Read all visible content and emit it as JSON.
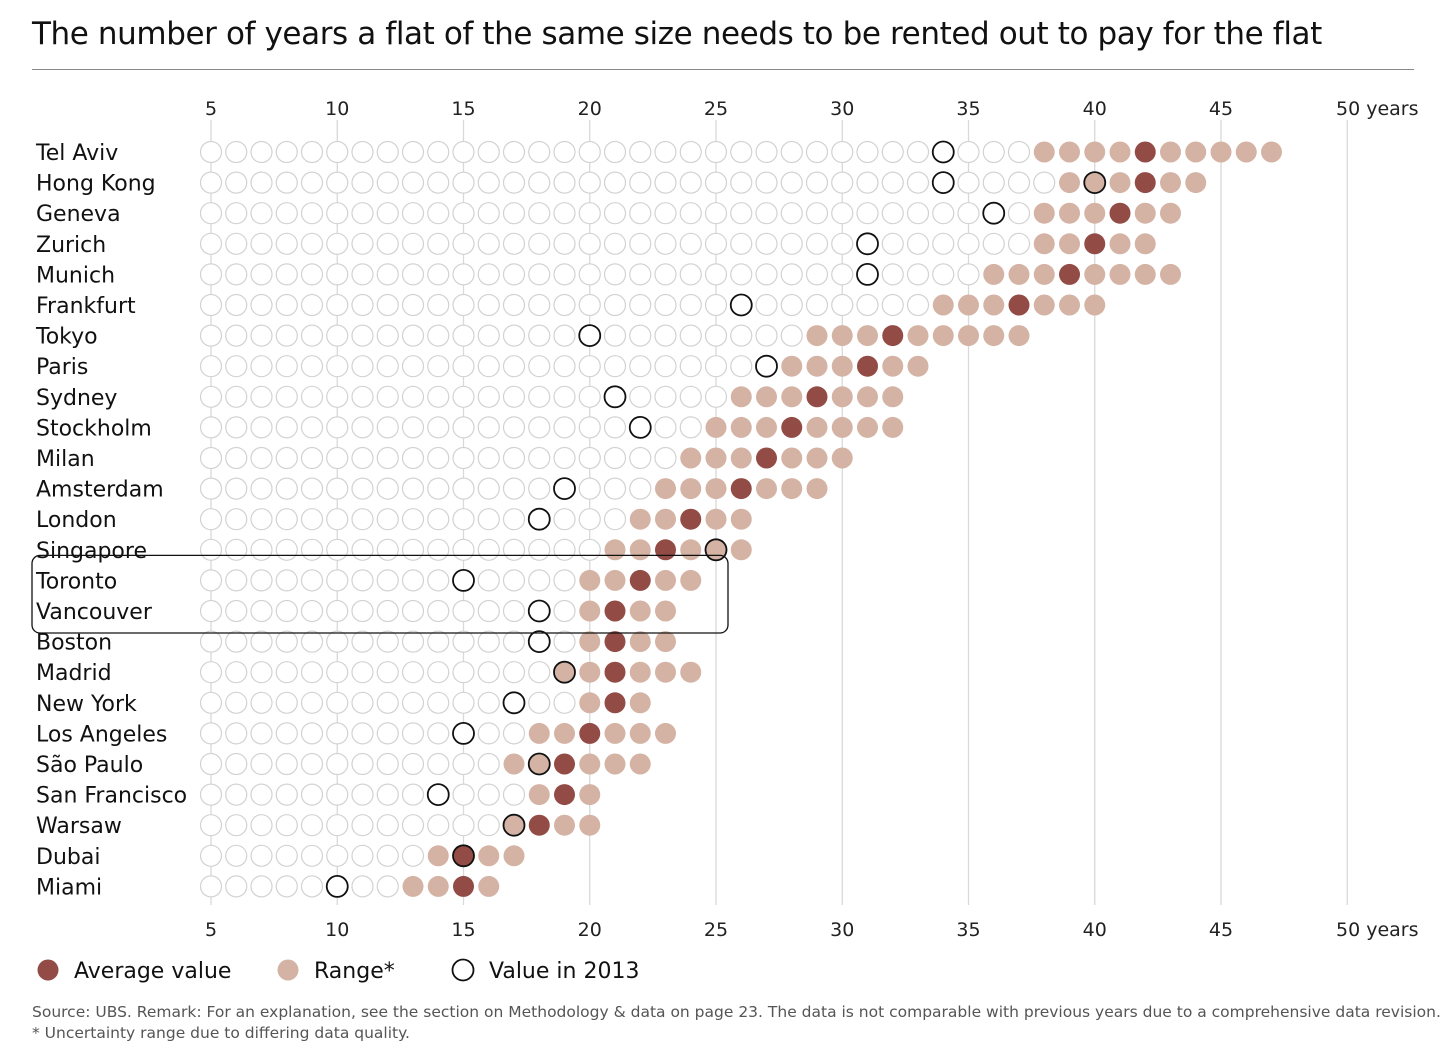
{
  "title": "The number of years a flat of the same size needs to be rented out to pay for the flat",
  "source": "Source: UBS. Remark: For an explanation, see the section on Methodology & data on page 23. The data is not comparable with previous years due to a comprehensive data revision.",
  "footnote": "* Uncertainty range due to differing data quality.",
  "colors": {
    "average": "#924b45",
    "range": "#d4b3a4",
    "empty": "#d2d2d2",
    "value2013": "#111111",
    "grid": "#d9d9d9"
  },
  "chart_data": {
    "type": "scatter",
    "title": "The number of years a flat of the same size needs to be rented out to pay for the flat",
    "xlabel": "years",
    "xlim": [
      5,
      50
    ],
    "xticks": [
      "5",
      "10",
      "15",
      "20",
      "25",
      "30",
      "35",
      "40",
      "45",
      "50 years"
    ],
    "xtick_values": [
      5,
      10,
      15,
      20,
      25,
      30,
      35,
      40,
      45,
      50
    ],
    "legend": [
      "Average value",
      "Range*",
      "Value in 2013"
    ],
    "legend_placement": "bottom-left",
    "highlighted": [
      "Toronto",
      "Vancouver"
    ],
    "cities": [
      {
        "name": "Tel Aviv",
        "range": [
          38,
          47
        ],
        "average": 42,
        "value2013": [
          34
        ]
      },
      {
        "name": "Hong Kong",
        "range": [
          39,
          44
        ],
        "average": 42,
        "value2013": [
          34,
          40
        ]
      },
      {
        "name": "Geneva",
        "range": [
          38,
          43
        ],
        "average": 41,
        "value2013": [
          36
        ]
      },
      {
        "name": "Zurich",
        "range": [
          38,
          42
        ],
        "average": 40,
        "value2013": [
          31
        ]
      },
      {
        "name": "Munich",
        "range": [
          36,
          43
        ],
        "average": 39,
        "value2013": [
          31
        ]
      },
      {
        "name": "Frankfurt",
        "range": [
          34,
          40
        ],
        "average": 37,
        "value2013": [
          26
        ]
      },
      {
        "name": "Tokyo",
        "range": [
          29,
          37
        ],
        "average": 32,
        "value2013": [
          20
        ]
      },
      {
        "name": "Paris",
        "range": [
          28,
          33
        ],
        "average": 31,
        "value2013": [
          27
        ]
      },
      {
        "name": "Sydney",
        "range": [
          26,
          32
        ],
        "average": 29,
        "value2013": [
          21
        ]
      },
      {
        "name": "Stockholm",
        "range": [
          25,
          32
        ],
        "average": 28,
        "value2013": [
          22
        ]
      },
      {
        "name": "Milan",
        "range": [
          24,
          30
        ],
        "average": 27,
        "value2013": []
      },
      {
        "name": "Amsterdam",
        "range": [
          23,
          29
        ],
        "average": 26,
        "value2013": [
          19
        ]
      },
      {
        "name": "London",
        "range": [
          22,
          26
        ],
        "average": 24,
        "value2013": [
          18
        ]
      },
      {
        "name": "Singapore",
        "range": [
          21,
          26
        ],
        "average": 23,
        "value2013": [
          25
        ]
      },
      {
        "name": "Toronto",
        "range": [
          20,
          24
        ],
        "average": 22,
        "value2013": [
          15
        ]
      },
      {
        "name": "Vancouver",
        "range": [
          20,
          23
        ],
        "average": 21,
        "value2013": [
          18
        ]
      },
      {
        "name": "Boston",
        "range": [
          20,
          23
        ],
        "average": 21,
        "value2013": [
          18
        ]
      },
      {
        "name": "Madrid",
        "range": [
          19,
          24
        ],
        "average": 21,
        "value2013": [
          19
        ]
      },
      {
        "name": "New York",
        "range": [
          20,
          22
        ],
        "average": 21,
        "value2013": [
          17
        ]
      },
      {
        "name": "Los Angeles",
        "range": [
          18,
          23
        ],
        "average": 20,
        "value2013": [
          15
        ]
      },
      {
        "name": "São Paulo",
        "range": [
          17,
          22
        ],
        "average": 19,
        "value2013": [
          18
        ]
      },
      {
        "name": "San Francisco",
        "range": [
          18,
          20
        ],
        "average": 19,
        "value2013": [
          14
        ]
      },
      {
        "name": "Warsaw",
        "range": [
          17,
          20
        ],
        "average": 18,
        "value2013": [
          17
        ]
      },
      {
        "name": "Dubai",
        "range": [
          14,
          17
        ],
        "average": 15,
        "value2013": [
          15
        ]
      },
      {
        "name": "Miami",
        "range": [
          13,
          16
        ],
        "average": 15,
        "value2013": [
          10
        ]
      }
    ]
  }
}
